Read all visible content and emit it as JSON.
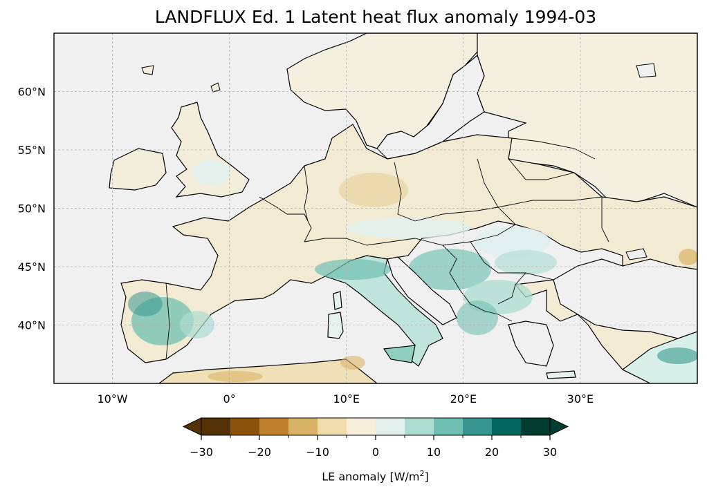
{
  "title": "LANDFLUX Ed. 1 Latent heat flux anomaly 1994-03",
  "map": {
    "lon_range": [
      -15,
      40
    ],
    "lat_range": [
      35,
      65
    ],
    "lon_ticks": [
      -10,
      0,
      10,
      20,
      30
    ],
    "lon_tick_labels": [
      "10°W",
      "0°",
      "10°E",
      "20°E",
      "30°E"
    ],
    "lat_ticks": [
      40,
      45,
      50,
      55,
      60
    ],
    "lat_tick_labels": [
      "40°N",
      "45°N",
      "50°N",
      "55°N",
      "60°N"
    ],
    "gridlines": true,
    "ocean_color": "#f0f0f0",
    "coastline_color": "#000000"
  },
  "colorbar": {
    "label_prefix": "LE anomaly [W/m",
    "label_sup": "2",
    "label_suffix": "]",
    "ticks": [
      -30,
      -20,
      -10,
      0,
      10,
      20,
      30
    ],
    "tick_labels": [
      "−30",
      "−20",
      "−10",
      "0",
      "10",
      "20",
      "30"
    ],
    "bounds": [
      -30,
      -25,
      -20,
      -15,
      -10,
      -5,
      0,
      5,
      10,
      15,
      20,
      25,
      30
    ],
    "colors": [
      "#543005",
      "#8c510a",
      "#bf812d",
      "#d8b365",
      "#f0dcaa",
      "#f5efdc",
      "#dff0ed",
      "#aadcd2",
      "#6fc0b2",
      "#35978f",
      "#01665e",
      "#003c30"
    ],
    "extend": "both"
  }
}
